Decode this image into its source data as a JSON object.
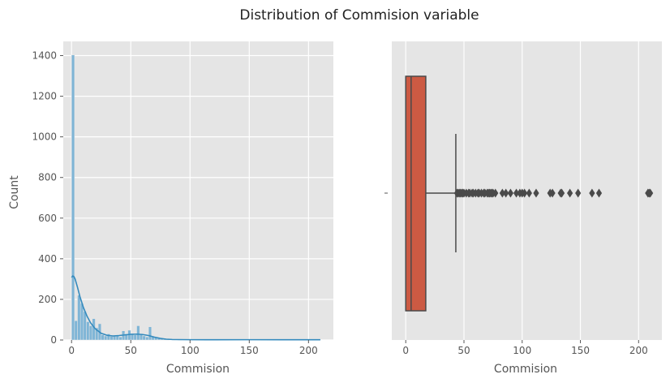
{
  "figure": {
    "suptitle": "Distribution of Commision variable"
  },
  "chart_data": [
    {
      "type": "bar",
      "subtype": "histogram-with-kde",
      "xlabel": "Commision",
      "ylabel": "Count",
      "xlim": [
        -7,
        221
      ],
      "ylim": [
        0,
        1470
      ],
      "xticks": [
        0,
        50,
        100,
        150,
        200
      ],
      "yticks": [
        0,
        200,
        400,
        600,
        800,
        1000,
        1200,
        1400
      ],
      "grid": true,
      "bar_color": "#7fb5d6",
      "kde_color": "#348abd",
      "bin_width": 2.5,
      "bin_starts": [
        0,
        2.5,
        5,
        7.5,
        10,
        12.5,
        15,
        17.5,
        20,
        22.5,
        25,
        27.5,
        30,
        32.5,
        35,
        37.5,
        40,
        42.5,
        45,
        47.5,
        50,
        52.5,
        55,
        57.5,
        60,
        62.5,
        65,
        67.5,
        70,
        72.5,
        75,
        77.5,
        80,
        85,
        90,
        100,
        110,
        120,
        130,
        140,
        150,
        160,
        165,
        170,
        180,
        190,
        200,
        207.5
      ],
      "counts": [
        1403,
        95,
        220,
        180,
        140,
        90,
        70,
        105,
        60,
        80,
        25,
        20,
        30,
        18,
        20,
        22,
        15,
        45,
        30,
        48,
        32,
        25,
        70,
        30,
        20,
        15,
        65,
        18,
        15,
        12,
        8,
        6,
        5,
        4,
        4,
        3,
        2,
        2,
        2,
        2,
        2,
        2,
        5,
        2,
        2,
        2,
        3,
        5
      ],
      "kde": {
        "x": [
          0,
          1,
          2,
          3,
          5,
          7,
          10,
          13,
          16,
          20,
          25,
          30,
          35,
          40,
          45,
          50,
          55,
          60,
          65,
          70,
          75,
          80,
          85,
          90,
          100,
          120,
          150,
          180,
          210
        ],
        "y": [
          308,
          315,
          312,
          300,
          260,
          215,
          160,
          118,
          85,
          55,
          33,
          23,
          20,
          22,
          25,
          28,
          29,
          27,
          22,
          14,
          8,
          4,
          2.5,
          2,
          1.5,
          1.2,
          1.5,
          1.3,
          1.2
        ]
      }
    },
    {
      "type": "box",
      "xlabel": "Commision",
      "xlim": [
        -12,
        220
      ],
      "xticks": [
        0,
        50,
        100,
        150,
        200
      ],
      "grid": true,
      "box_color": "#cc5a43",
      "q1": 0,
      "median": 4.6,
      "q3": 17.2,
      "whisker_low": 0,
      "whisker_high": 43,
      "outliers": [
        44,
        45,
        46,
        47,
        48,
        49,
        50,
        52,
        54,
        55,
        57,
        58,
        60,
        62,
        63,
        65,
        67,
        68,
        70,
        71,
        72,
        73,
        74,
        75,
        77,
        83,
        86,
        90,
        95,
        98,
        100,
        102,
        106,
        112,
        124,
        126,
        133,
        134,
        141,
        148,
        160,
        166,
        208,
        209,
        210
      ]
    }
  ]
}
